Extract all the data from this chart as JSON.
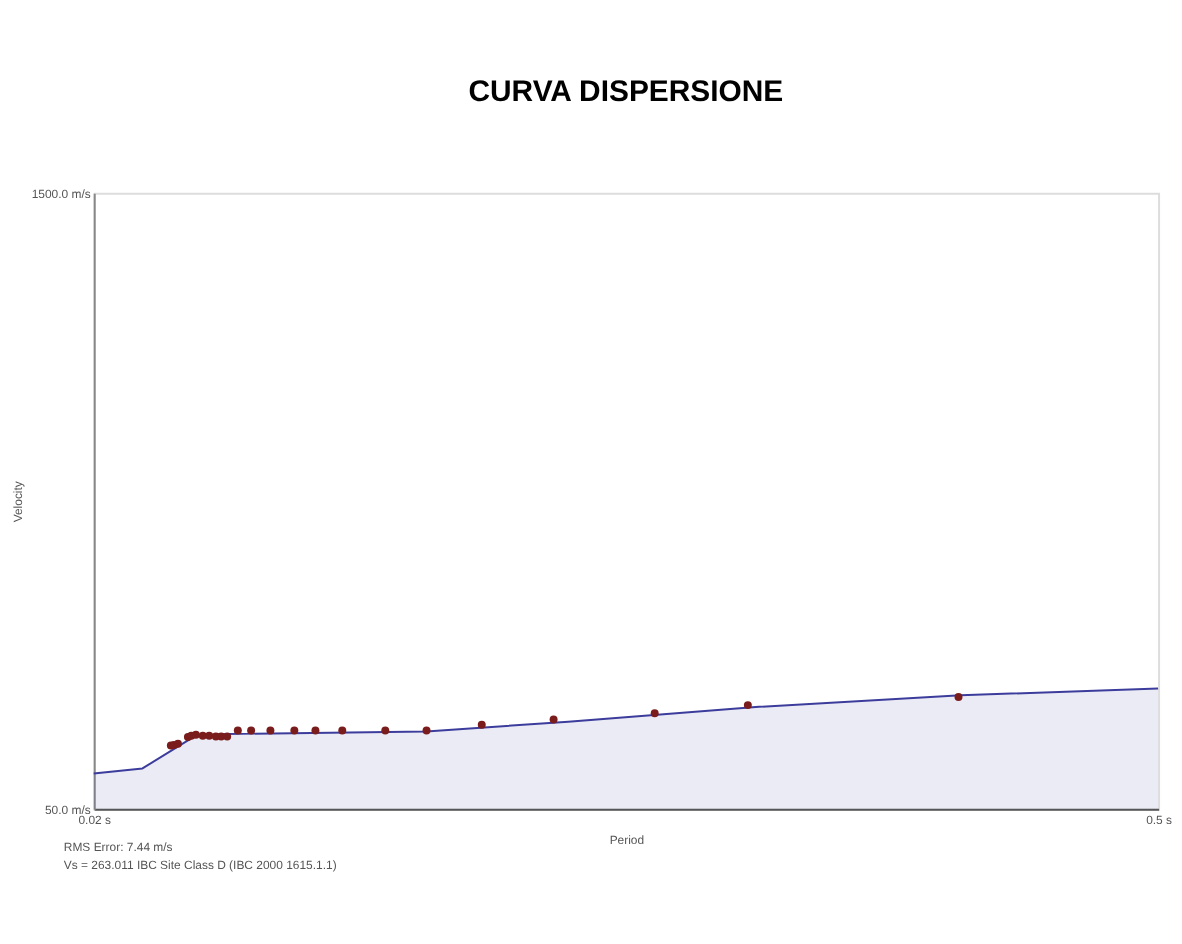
{
  "chart_data": {
    "type": "scatter",
    "title": "CURVA DISPERSIONE",
    "xlabel": "Period",
    "ylabel": "Velocity",
    "xlim": [
      0.02,
      0.5
    ],
    "ylim": [
      50,
      1500
    ],
    "xticks": [
      {
        "value": 0.02,
        "label": "0.02 s"
      },
      {
        "value": 0.5,
        "label": "0.5 s"
      }
    ],
    "yticks": [
      {
        "value": 50,
        "label": "50.0 m/s"
      },
      {
        "value": 1500,
        "label": "1500.0 m/s"
      }
    ],
    "series": [
      {
        "type": "area",
        "marker": "none",
        "color": "#3c3c9c",
        "x": [
          0.02,
          0.042,
          0.066,
          0.08,
          0.17,
          0.234,
          0.32,
          0.411,
          0.5
        ],
        "values": [
          133,
          145,
          222,
          226,
          232,
          255,
          290,
          317,
          333
        ]
      },
      {
        "marker": "circle",
        "color": "#7a1c1c",
        "x": [
          0.0548,
          0.0562,
          0.058,
          0.0625,
          0.064,
          0.0661,
          0.0692,
          0.0721,
          0.0751,
          0.0775,
          0.0802,
          0.085,
          0.091,
          0.0997,
          0.1105,
          0.12,
          0.1321,
          0.1515,
          0.1701,
          0.195,
          0.2274,
          0.273,
          0.315,
          0.41
        ],
        "values": [
          199,
          200,
          203,
          219,
          222,
          224,
          222,
          222,
          220,
          220,
          220,
          234,
          234,
          234,
          234,
          234,
          234,
          234,
          234,
          248,
          260,
          275,
          294,
          313
        ]
      }
    ],
    "annotations": [
      "RMS Error: 7.44 m/s",
      "Vs = 263.011   IBC Site Class D (IBC 2000 1615.1.1)"
    ]
  }
}
